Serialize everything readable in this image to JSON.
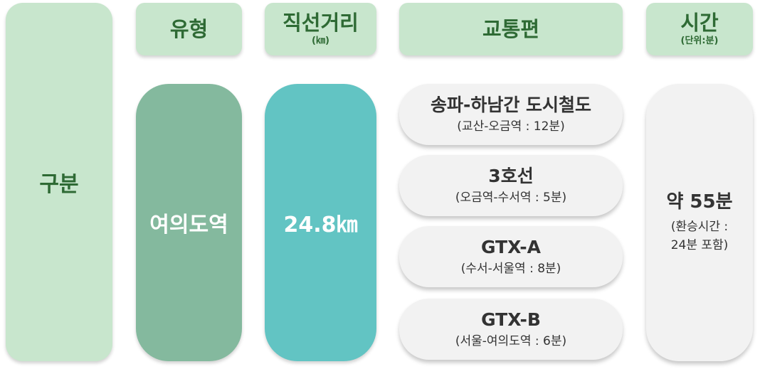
{
  "headers": {
    "category": "구분",
    "type": "유형",
    "distance": {
      "title": "직선거리",
      "unit": "(㎞)"
    },
    "transport": "교통편",
    "time": {
      "title": "시간",
      "unit": "(단위:분)"
    }
  },
  "route": {
    "type": "여의도역",
    "distance": "24.8㎞",
    "segments": [
      {
        "line": "송파-하남간 도시철도",
        "detail": "(교산-오금역 : 12분)"
      },
      {
        "line": "3호선",
        "detail": "(오금역-수서역 : 5분)"
      },
      {
        "line": "GTX-A",
        "detail": "(수서-서울역 : 8분)"
      },
      {
        "line": "GTX-B",
        "detail": "(서울-여의도역 : 6분)"
      }
    ],
    "time": {
      "total": "약 55분",
      "note_1": "(환승시간 :",
      "note_2": "24분 포함)"
    }
  },
  "colors": {
    "header_bg": "#c8e6cd",
    "header_text": "#2e6a34",
    "type_bg": "#84b99e",
    "distance_bg": "#62c4c3",
    "panel_bg": "#f2f2f2"
  }
}
